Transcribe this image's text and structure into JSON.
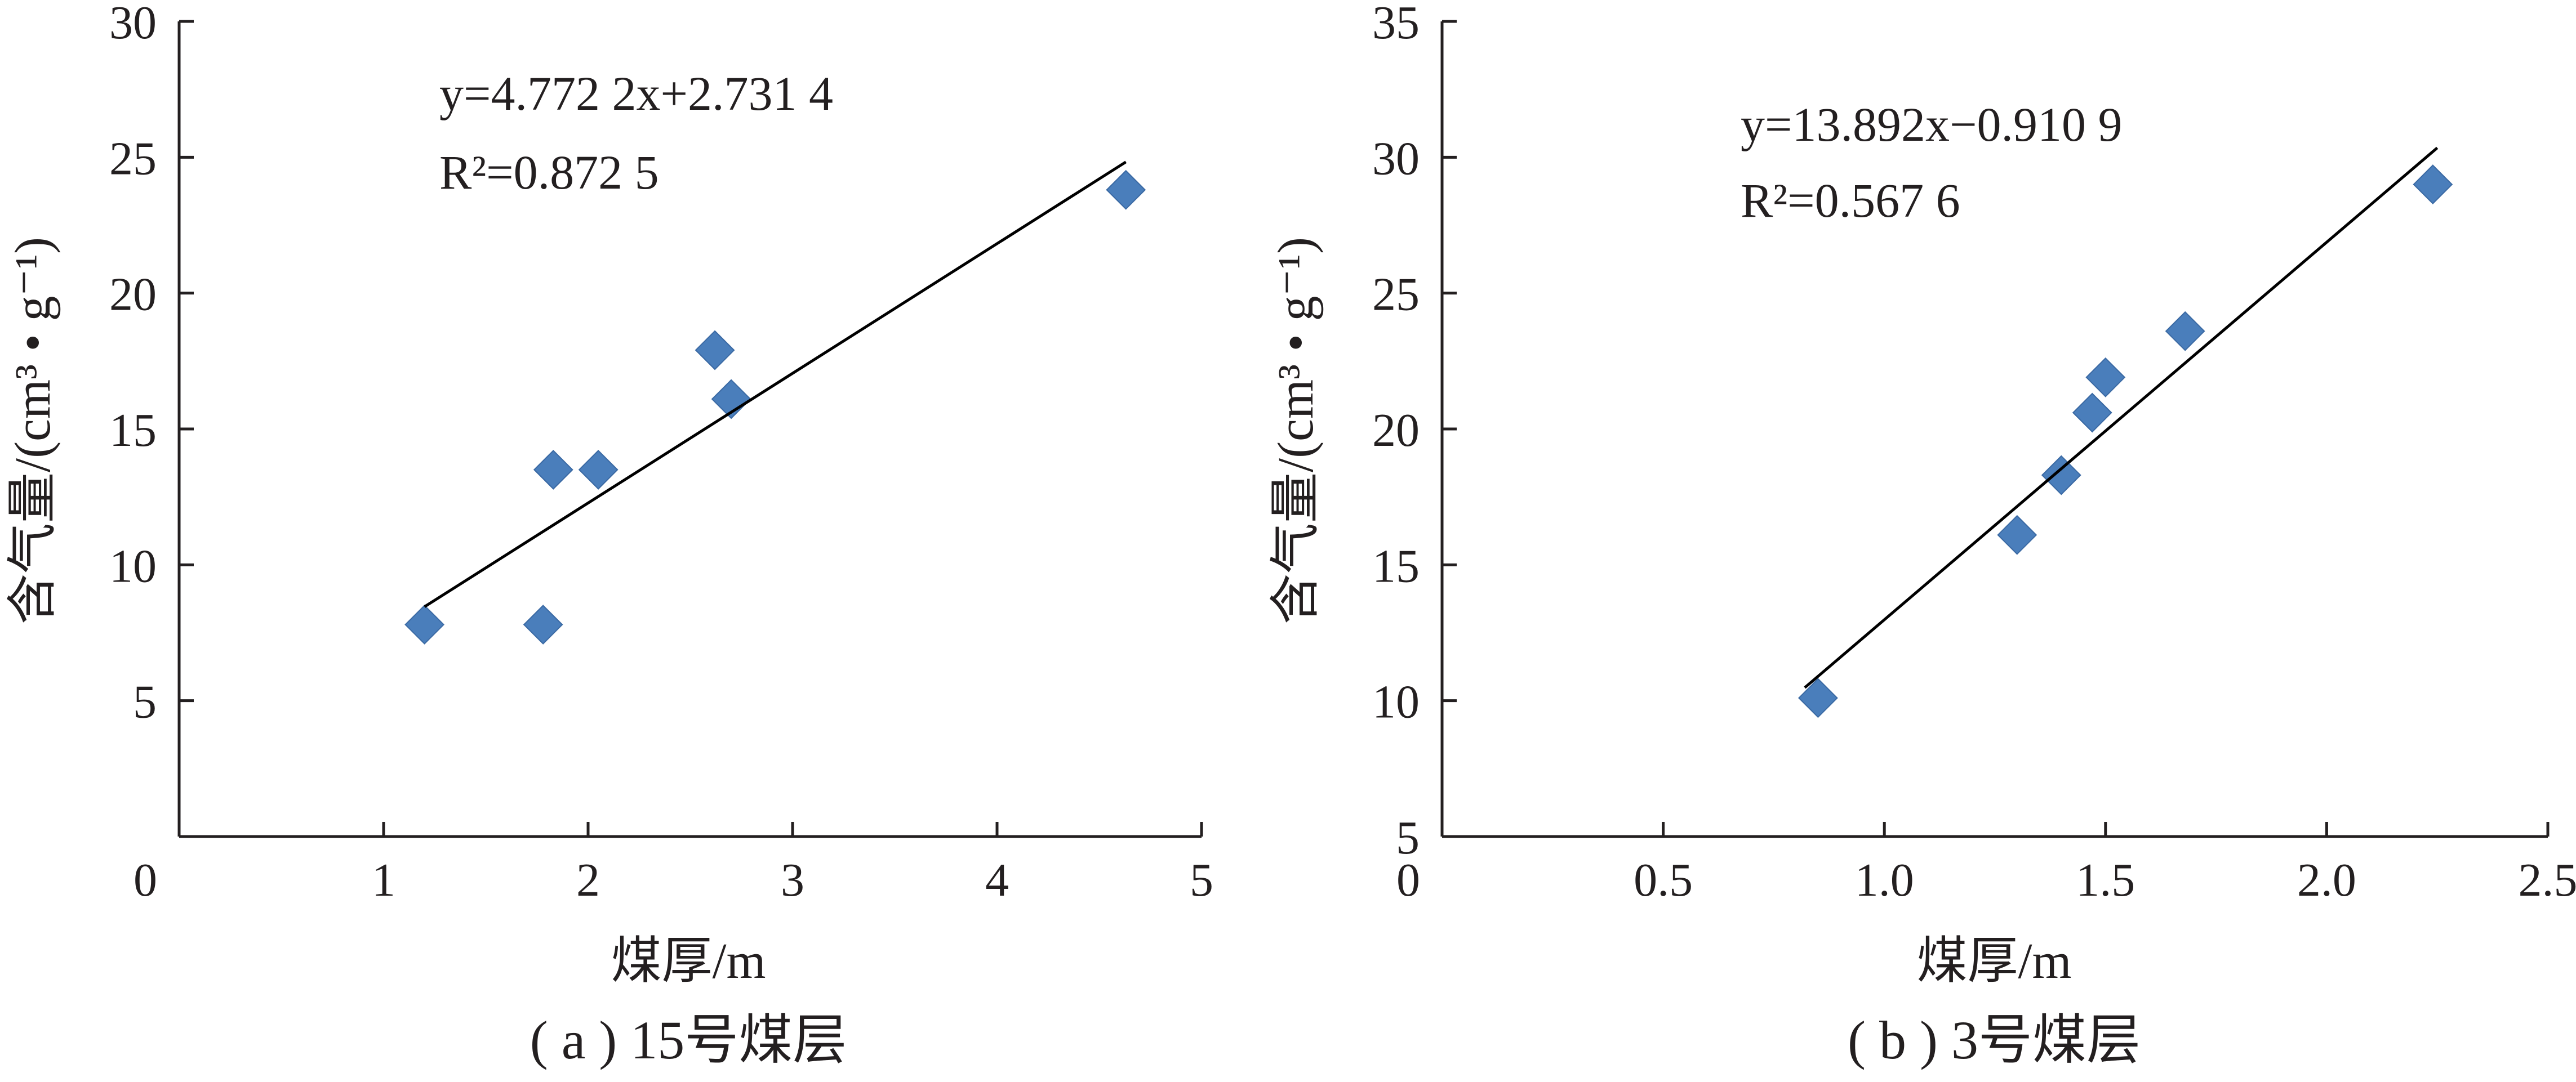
{
  "chart_data": [
    {
      "type": "scatter",
      "caption": "( a ) 15号煤层",
      "xlabel": "煤厚/m",
      "ylabel": "含气量/(cm³ • g⁻¹)",
      "xlim": [
        0,
        5
      ],
      "ylim": [
        0,
        30
      ],
      "xticks": [
        "0",
        "1",
        "2",
        "3",
        "4",
        "5"
      ],
      "yticks": [
        "5",
        "10",
        "15",
        "20",
        "25",
        "30"
      ],
      "equation": "y=4.772 2x+2.731 4",
      "r_squared": "R²=0.872 5",
      "trendline": {
        "slope": 4.7722,
        "intercept": 2.7314,
        "x_range": [
          1.2,
          4.63
        ]
      },
      "points": [
        {
          "x": 1.2,
          "y": 7.8
        },
        {
          "x": 1.78,
          "y": 7.8
        },
        {
          "x": 1.83,
          "y": 13.5
        },
        {
          "x": 2.05,
          "y": 13.5
        },
        {
          "x": 2.62,
          "y": 17.9
        },
        {
          "x": 2.7,
          "y": 16.1
        },
        {
          "x": 4.63,
          "y": 23.8
        }
      ],
      "marker_color": "#4a7ebb"
    },
    {
      "type": "scatter",
      "caption": "( b ) 3号煤层",
      "xlabel": "煤厚/m",
      "ylabel": "含气量/(cm³ • g⁻¹)",
      "xlim": [
        0,
        2.5
      ],
      "ylim": [
        5,
        35
      ],
      "xticks": [
        "0",
        "0.5",
        "1.0",
        "1.5",
        "2.0",
        "2.5"
      ],
      "yticks": [
        "5",
        "10",
        "15",
        "20",
        "25",
        "30",
        "35"
      ],
      "equation": "y=13.892x−0.910 9",
      "r_squared": "R²=0.567 6",
      "trendline": {
        "slope": 13.892,
        "intercept": -0.9109,
        "x_range": [
          0.82,
          2.25
        ]
      },
      "points": [
        {
          "x": 0.85,
          "y": 10.1
        },
        {
          "x": 1.3,
          "y": 16.1
        },
        {
          "x": 1.4,
          "y": 18.3
        },
        {
          "x": 1.47,
          "y": 20.6
        },
        {
          "x": 1.5,
          "y": 21.9
        },
        {
          "x": 1.68,
          "y": 23.6
        },
        {
          "x": 2.24,
          "y": 29.0
        }
      ],
      "marker_color": "#4a7ebb"
    }
  ]
}
